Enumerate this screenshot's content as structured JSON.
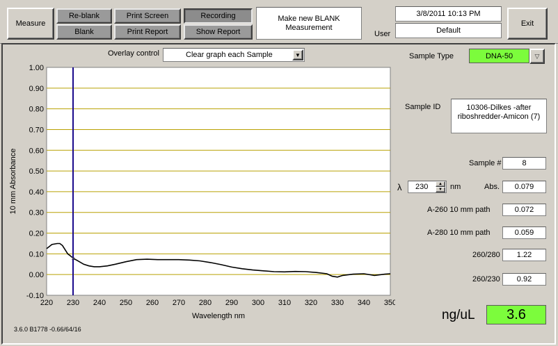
{
  "toolbar": {
    "measure": "Measure",
    "reblank": "Re-blank",
    "blank": "Blank",
    "print_screen": "Print Screen",
    "print_report": "Print Report",
    "recording": "Recording",
    "show_report": "Show Report",
    "exit": "Exit"
  },
  "status": {
    "message": "Make new BLANK Measurement",
    "datetime": "3/8/2011  10:13 PM",
    "user_label": "User",
    "user_value": "Default"
  },
  "overlay": {
    "label": "Overlay control",
    "value": "Clear graph each Sample"
  },
  "sample": {
    "type_label": "Sample Type",
    "type_value": "DNA-50",
    "id_label": "Sample ID",
    "id_value": "10306-Dilkes -after riboshredder-Amicon (7)",
    "number_label": "Sample #",
    "number_value": "8",
    "lambda_symbol": "λ",
    "lambda_value": "230",
    "lambda_unit": "nm",
    "abs_label": "Abs.",
    "abs_value": "0.079",
    "a260_label": "A-260 10 mm path",
    "a260_value": "0.072",
    "a280_label": "A-280 10 mm path",
    "a280_value": "0.059",
    "r260_280_label": "260/280",
    "r260_280_value": "1.22",
    "r260_230_label": "260/230",
    "r260_230_value": "0.92",
    "conc_label": "ng/uL",
    "conc_value": "3.6"
  },
  "version": "3.6.0 B1778 -0.66/64/16",
  "colors": {
    "green": "#7cfc3c",
    "grid": "#b8a000",
    "cursor": "#1a0a8c"
  },
  "chart_data": {
    "type": "line",
    "xlabel": "Wavelength nm",
    "ylabel": "10 mm Absorbance",
    "xlim": [
      220,
      350
    ],
    "ylim": [
      -0.1,
      1.0
    ],
    "xticks": [
      220,
      230,
      240,
      250,
      260,
      270,
      280,
      290,
      300,
      310,
      320,
      330,
      340,
      350
    ],
    "yticks": [
      -0.1,
      0.0,
      0.1,
      0.2,
      0.3,
      0.4,
      0.5,
      0.6,
      0.7,
      0.8,
      0.9,
      1.0
    ],
    "ytick_labels": [
      "-0.10",
      "0.00",
      "0.10",
      "0.20",
      "0.30",
      "0.40",
      "0.50",
      "0.60",
      "0.70",
      "0.80",
      "0.90",
      "1.00"
    ],
    "grid": true,
    "cursor_x": 230,
    "series": [
      {
        "x": [
          220,
          222,
          224,
          225,
          226,
          227,
          228,
          229,
          230,
          232,
          234,
          236,
          238,
          240,
          243,
          246,
          250,
          254,
          258,
          262,
          266,
          270,
          274,
          278,
          282,
          286,
          290,
          294,
          298,
          302,
          306,
          310,
          314,
          318,
          322,
          326,
          328,
          330,
          332,
          336,
          340,
          344,
          348,
          350
        ],
        "y": [
          0.125,
          0.145,
          0.15,
          0.15,
          0.14,
          0.12,
          0.1,
          0.09,
          0.079,
          0.065,
          0.05,
          0.042,
          0.038,
          0.038,
          0.042,
          0.05,
          0.062,
          0.072,
          0.074,
          0.072,
          0.072,
          0.072,
          0.07,
          0.066,
          0.058,
          0.048,
          0.036,
          0.028,
          0.022,
          0.018,
          0.014,
          0.013,
          0.015,
          0.014,
          0.01,
          0.004,
          -0.008,
          -0.012,
          -0.004,
          0.002,
          0.004,
          -0.004,
          0.002,
          0.004
        ]
      }
    ]
  }
}
